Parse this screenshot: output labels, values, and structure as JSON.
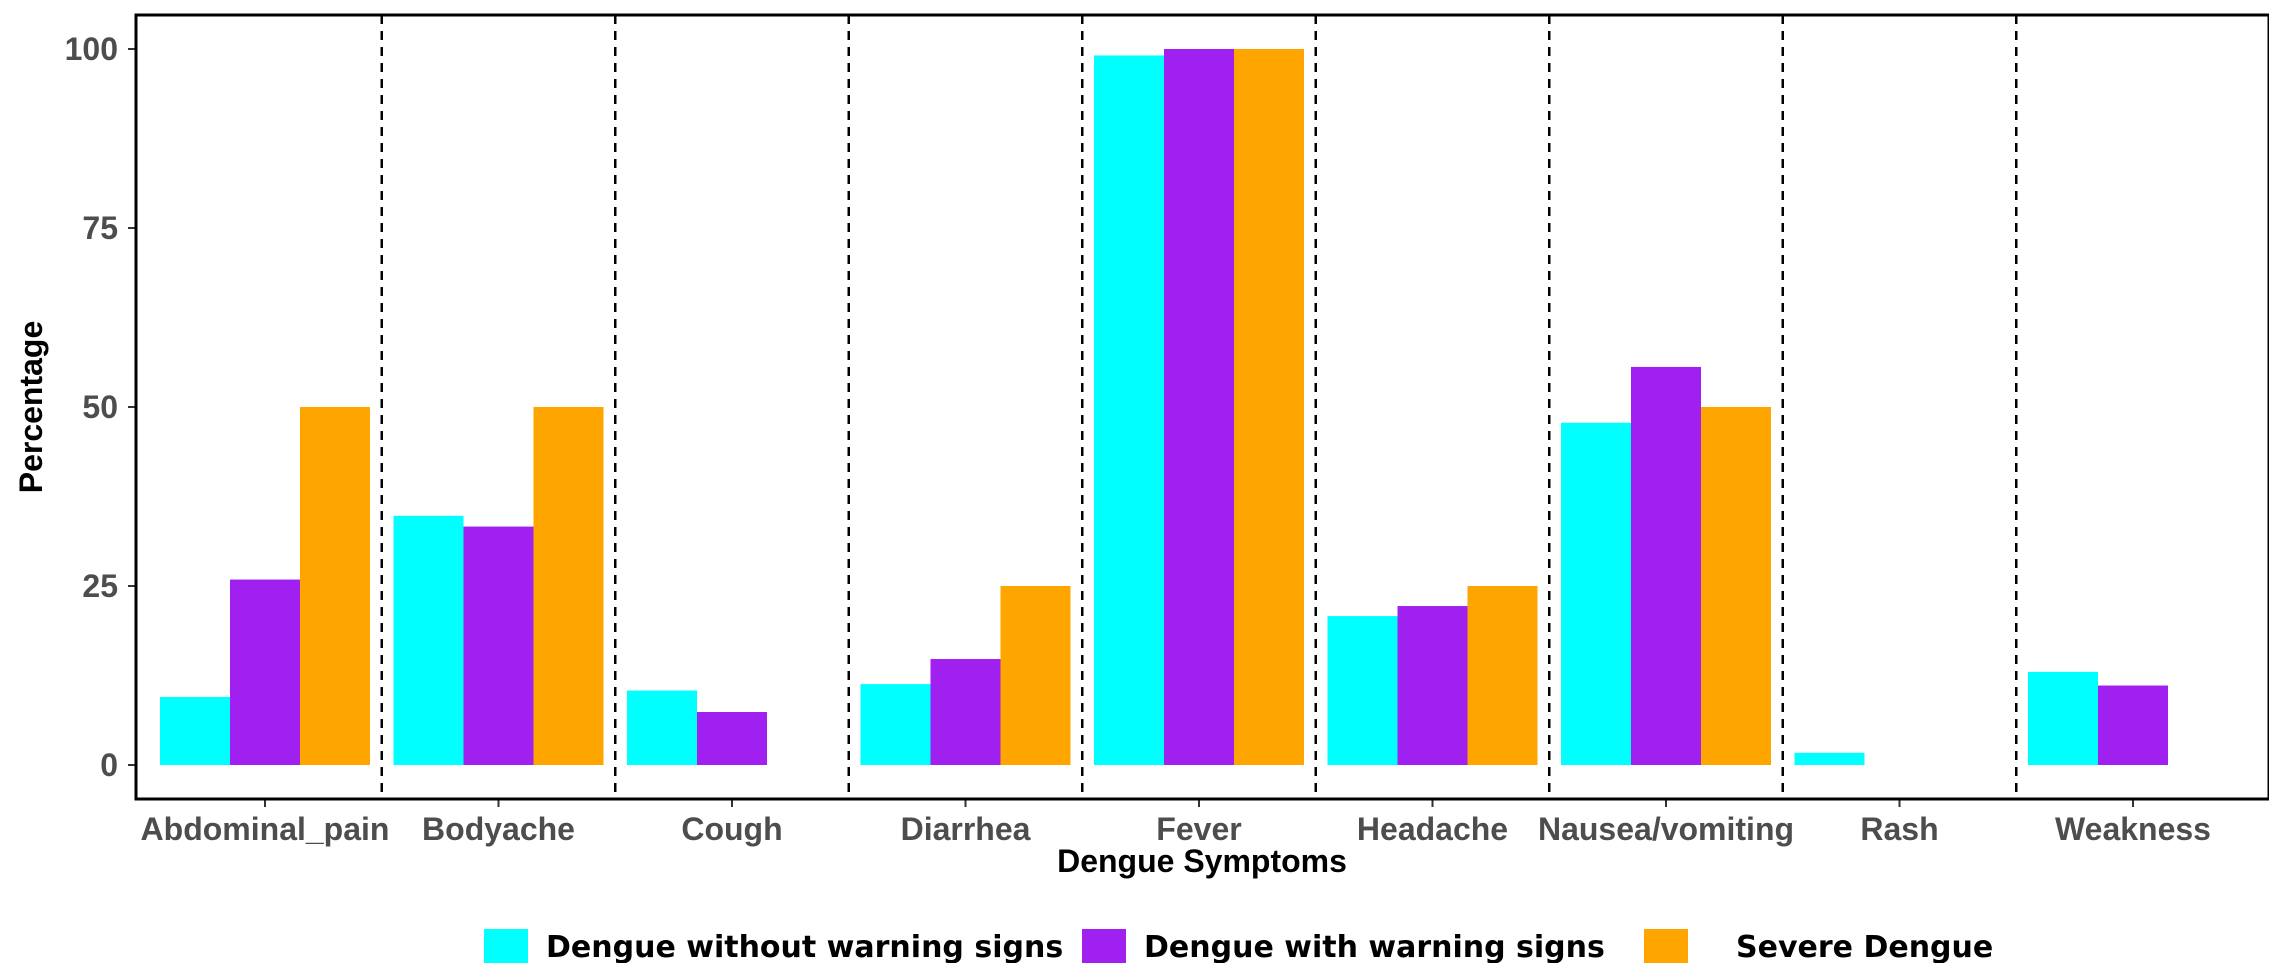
{
  "chart_data": {
    "type": "bar",
    "title": "",
    "xlabel": "Dengue Symptoms",
    "ylabel": "Percentage",
    "ylim": [
      0,
      100
    ],
    "yticks": [
      0,
      25,
      50,
      75,
      100
    ],
    "grid": false,
    "legend_position": "bottom",
    "categories": [
      "Abdominal_pain",
      "Bodyache",
      "Cough",
      "Diarrhea",
      "Fever",
      "Headache",
      "Nausea/vomiting",
      "Rash",
      "Weakness"
    ],
    "series": [
      {
        "name": "Dengue without warning signs",
        "color": "#00FFFF",
        "values": [
          9.5,
          34.8,
          10.4,
          11.3,
          99.1,
          20.8,
          47.8,
          1.7,
          13.0
        ]
      },
      {
        "name": "Dengue with warning signs",
        "color": "#A020F0",
        "values": [
          25.9,
          33.3,
          7.4,
          14.8,
          100,
          22.2,
          55.6,
          0,
          11.1
        ]
      },
      {
        "name": "Severe Dengue",
        "color": "#FFA500",
        "values": [
          50,
          50,
          0,
          25,
          100,
          25,
          50,
          0,
          0
        ]
      }
    ]
  }
}
